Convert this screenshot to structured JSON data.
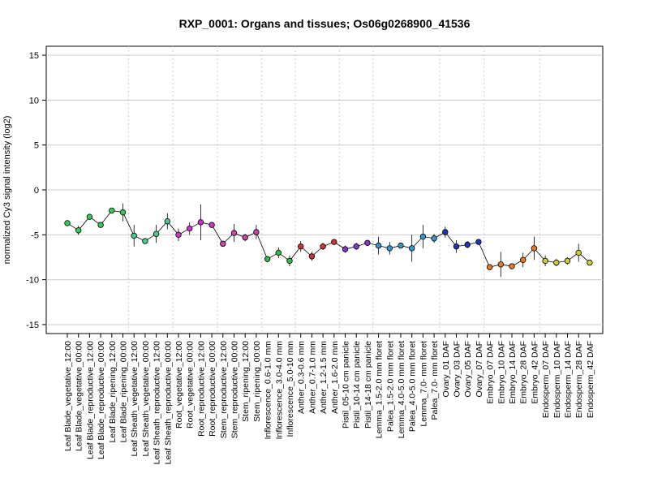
{
  "chart_data": {
    "type": "line",
    "title": "RXP_0001: Organs and tissues; Os06g0268900_41536",
    "xlabel": "",
    "ylabel": "normalized Cy3 signal intensity (log2)",
    "ylim": [
      -16,
      16
    ],
    "yticks": [
      -15,
      -10,
      -5,
      0,
      5,
      10,
      15
    ],
    "grid": "horizontal lines at y ticks; dotted vertical separators between tissue groups",
    "categories": [
      "Leaf Blade_vegetative_12:00",
      "Leaf Blade_vegetative_00:00",
      "Leaf Blade_reproductive_12:00",
      "Leaf Blade_reproductive_00:00",
      "Leaf Blade_ripening_12:00",
      "Leaf Blade_ripening_00:00",
      "Leaf Sheath_vegetative_12:00",
      "Leaf Sheath_vegetative_00:00",
      "Leaf Sheath_reproductive_12:00",
      "Leaf Sheath_reproductive_00:00",
      "Root_vegetative_12:00",
      "Root_vegetative_00:00",
      "Root_reproductive_12:00",
      "Root_reproductive_00:00",
      "Stem_reproductive_12:00",
      "Stem_reproductive_00:00",
      "Stem_ripening_12:00",
      "Stem_ripening_00:00",
      "Inflorescence_0.6-1.0 mm",
      "Inflorescence_3.0-4.0 mm",
      "Inflorescence_5.0-10 mm",
      "Anther_0.3-0.6 mm",
      "Anther_0.7-1.0 mm",
      "Anther_1.2-1.5 mm",
      "Anther_1.6-2.0 mm",
      "Pistil_05-10 cm panicle",
      "Pistil_10-14 cm panicle",
      "Pistil_14-18 cm panicle",
      "Lemma_1.5-2.0 mm floret",
      "Palea_1.5-2.0 mm floret",
      "Lemma_4.0-5.0 mm floret",
      "Palea_4.0-5.0 mm floret",
      "Lemma_7.0- mm floret",
      "Palea_7.0- mm floret",
      "Ovary_01 DAF",
      "Ovary_03 DAF",
      "Ovary_05 DAF",
      "Ovary_07 DAF",
      "Embryo_07 DAF",
      "Embryo_10 DAF",
      "Embryo_14 DAF",
      "Embryo_28 DAF",
      "Embryo_42 DAF",
      "Endosperm_07 DAF",
      "Endosperm_10 DAF",
      "Endosperm_14 DAF",
      "Endosperm_28 DAF",
      "Endosperm_42 DAF"
    ],
    "values": [
      -3.7,
      -4.5,
      -3.0,
      -3.9,
      -2.3,
      -2.5,
      -5.1,
      -5.7,
      -4.9,
      -3.5,
      -5.0,
      -4.3,
      -3.6,
      -3.9,
      -6.0,
      -4.8,
      -5.3,
      -4.7,
      -7.7,
      -7.0,
      -7.9,
      -6.3,
      -7.4,
      -6.3,
      -5.8,
      -6.6,
      -6.3,
      -5.9,
      -6.2,
      -6.5,
      -6.2,
      -6.5,
      -5.2,
      -5.4,
      -4.7,
      -6.3,
      -6.1,
      -5.8,
      -8.6,
      -8.3,
      -8.5,
      -7.8,
      -6.5,
      -7.9,
      -8.1,
      -7.9,
      -7.0,
      -8.1
    ],
    "errors": [
      0.2,
      0.5,
      0.2,
      0.3,
      0.2,
      1.0,
      1.2,
      0.3,
      1.0,
      0.9,
      0.7,
      0.7,
      2.0,
      0.2,
      0.3,
      1.0,
      0.4,
      0.8,
      0.3,
      0.6,
      0.6,
      0.6,
      0.5,
      0.4,
      0.3,
      0.4,
      0.4,
      0.3,
      1.0,
      0.7,
      0.3,
      1.5,
      1.3,
      0.5,
      0.6,
      0.7,
      0.4,
      0.3,
      0.3,
      1.4,
      0.3,
      0.8,
      1.3,
      0.6,
      0.4,
      0.4,
      1.0,
      0.3
    ],
    "point_colors": [
      "#33cc55",
      "#33cc55",
      "#33cc55",
      "#33cc55",
      "#33cc55",
      "#33cc55",
      "#44cc88",
      "#44cc88",
      "#44cc88",
      "#44cc88",
      "#cc33cc",
      "#cc33cc",
      "#cc33cc",
      "#cc33cc",
      "#cc44aa",
      "#cc44aa",
      "#cc44aa",
      "#cc44aa",
      "#33bb44",
      "#33bb44",
      "#33bb44",
      "#cc3333",
      "#cc3333",
      "#cc3333",
      "#cc3333",
      "#8833cc",
      "#8833cc",
      "#8833cc",
      "#3399cc",
      "#3399cc",
      "#3399cc",
      "#3399cc",
      "#3399cc",
      "#3399cc",
      "#2233bb",
      "#2233bb",
      "#2233bb",
      "#2233bb",
      "#ee7722",
      "#ee7722",
      "#ee7722",
      "#ee7722",
      "#ee7722",
      "#cccc33",
      "#cccc33",
      "#cccc33",
      "#cccc33",
      "#cccc33"
    ],
    "group_separators_after": [
      5,
      9,
      13,
      17,
      20,
      24,
      27,
      33,
      37,
      42
    ],
    "line_color": "#000000"
  }
}
